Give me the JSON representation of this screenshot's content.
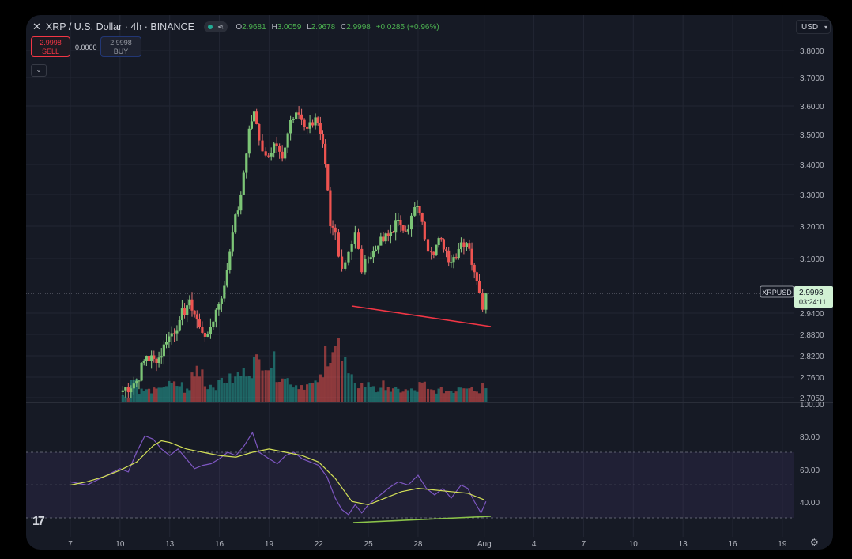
{
  "header": {
    "symbol_title": "XRP / U.S. Dollar · 4h · BINANCE",
    "open_label": "O",
    "open": "2.9681",
    "high_label": "H",
    "high": "3.0059",
    "low_label": "L",
    "low": "2.9678",
    "close_label": "C",
    "close": "2.9998",
    "change": "+0.0285 (+0.96%)"
  },
  "trade": {
    "sell_price": "2.9998",
    "sell_label": "SELL",
    "spread": "0.0000",
    "buy_price": "2.9998",
    "buy_label": "BUY"
  },
  "currency": "USD",
  "price_tag": {
    "symbol": "XRPUSD",
    "price": "2.9998",
    "countdown": "03:24:11"
  },
  "colors": {
    "up": "#26a69a",
    "down": "#ef5350",
    "trendline_price": "#f23645",
    "trendline_rsi": "#8bc34a",
    "rsi_line": "#7e57c2",
    "rsi_ma": "#d4e157",
    "background": "#161a25"
  },
  "icons": {
    "close": "close-icon",
    "share": "share-icon",
    "collapse": "chevron-down-icon",
    "logo": "tradingview-logo",
    "settings": "gear-icon"
  },
  "chart_data": [
    {
      "type": "candlestick",
      "interval": "4h",
      "y_axis_ticks": [
        3.8,
        3.7,
        3.6,
        3.5,
        3.4,
        3.3,
        3.2,
        3.1,
        2.94,
        2.88,
        2.82,
        2.76,
        2.705
      ],
      "y_axis_labels": [
        "3.8000",
        "3.7000",
        "3.6000",
        "3.5000",
        "3.4000",
        "3.3000",
        "3.2000",
        "3.1000",
        "2.9400",
        "2.8800",
        "2.8200",
        "2.7600",
        "2.7050"
      ],
      "x_axis_labels": [
        "7",
        "10",
        "13",
        "16",
        "19",
        "22",
        "25",
        "28",
        "Aug",
        "4",
        "7",
        "10",
        "13",
        "16",
        "19"
      ],
      "x_axis_days": [
        7,
        10,
        13,
        16,
        19,
        22,
        25,
        28,
        32,
        35,
        38,
        41,
        44,
        47,
        50
      ],
      "ohlc_anchors_day_close": [
        [
          10.0,
          2.72
        ],
        [
          11.0,
          2.75
        ],
        [
          11.6,
          2.82
        ],
        [
          12.2,
          2.8
        ],
        [
          12.8,
          2.86
        ],
        [
          13.6,
          2.92
        ],
        [
          14.2,
          2.98
        ],
        [
          14.8,
          2.9
        ],
        [
          15.3,
          2.88
        ],
        [
          15.8,
          2.95
        ],
        [
          16.3,
          3.02
        ],
        [
          16.8,
          3.18
        ],
        [
          17.3,
          3.3
        ],
        [
          17.8,
          3.52
        ],
        [
          18.1,
          3.58
        ],
        [
          18.4,
          3.48
        ],
        [
          18.8,
          3.43
        ],
        [
          19.3,
          3.47
        ],
        [
          19.8,
          3.42
        ],
        [
          20.3,
          3.55
        ],
        [
          20.8,
          3.57
        ],
        [
          21.3,
          3.52
        ],
        [
          21.8,
          3.56
        ],
        [
          22.1,
          3.5
        ],
        [
          22.4,
          3.4
        ],
        [
          22.7,
          3.2
        ],
        [
          23.0,
          3.18
        ],
        [
          23.4,
          3.07
        ],
        [
          23.8,
          3.12
        ],
        [
          24.2,
          3.18
        ],
        [
          24.6,
          3.06
        ],
        [
          25.0,
          3.1
        ],
        [
          25.6,
          3.14
        ],
        [
          26.2,
          3.17
        ],
        [
          26.8,
          3.22
        ],
        [
          27.4,
          3.19
        ],
        [
          27.8,
          3.26
        ],
        [
          28.1,
          3.24
        ],
        [
          28.4,
          3.16
        ],
        [
          28.8,
          3.12
        ],
        [
          29.4,
          3.16
        ],
        [
          30.0,
          3.09
        ],
        [
          30.6,
          3.15
        ],
        [
          31.1,
          3.13
        ],
        [
          31.4,
          3.06
        ],
        [
          31.7,
          3.0
        ],
        [
          31.9,
          2.95
        ],
        [
          32.1,
          2.9998
        ]
      ],
      "volume_relative": [
        0.1,
        0.4,
        0.2,
        0.2,
        0.2,
        0.3,
        0.3,
        0.3,
        0.2,
        0.5,
        0.6,
        0.3,
        0.3,
        0.4,
        0.4,
        0.5,
        0.6,
        0.7,
        0.8,
        0.7,
        0.5,
        0.4,
        0.3,
        0.3,
        0.3,
        0.4,
        0.9,
        1.0,
        0.7,
        0.4,
        0.3,
        0.3,
        0.2,
        0.3,
        0.2,
        0.2,
        0.2,
        0.2,
        0.3,
        0.2,
        0.2,
        0.2,
        0.2,
        0.3,
        0.3,
        0.2,
        0.3
      ]
    },
    {
      "type": "line",
      "name": "RSI",
      "y_axis_labels": [
        "100.00",
        "80.00",
        "60.00",
        "40.00"
      ],
      "y_axis_ticks": [
        100,
        80,
        60,
        40
      ],
      "band": [
        30,
        70
      ],
      "rsi": [
        [
          7,
          52
        ],
        [
          8,
          50
        ],
        [
          9,
          55
        ],
        [
          10,
          60
        ],
        [
          10.5,
          58
        ],
        [
          11,
          70
        ],
        [
          11.5,
          80
        ],
        [
          12,
          78
        ],
        [
          12.5,
          72
        ],
        [
          13,
          68
        ],
        [
          13.5,
          72
        ],
        [
          14,
          66
        ],
        [
          14.5,
          60
        ],
        [
          15,
          62
        ],
        [
          15.5,
          63
        ],
        [
          16,
          66
        ],
        [
          16.5,
          70
        ],
        [
          17,
          68
        ],
        [
          17.5,
          74
        ],
        [
          18,
          82
        ],
        [
          18.4,
          70
        ],
        [
          19,
          66
        ],
        [
          19.5,
          63
        ],
        [
          20,
          68
        ],
        [
          20.5,
          70
        ],
        [
          21,
          66
        ],
        [
          21.5,
          64
        ],
        [
          22,
          62
        ],
        [
          22.5,
          55
        ],
        [
          23,
          42
        ],
        [
          23.4,
          35
        ],
        [
          23.8,
          32
        ],
        [
          24.2,
          38
        ],
        [
          24.6,
          33
        ],
        [
          25,
          38
        ],
        [
          25.6,
          43
        ],
        [
          26.2,
          48
        ],
        [
          26.8,
          52
        ],
        [
          27.4,
          50
        ],
        [
          28,
          56
        ],
        [
          28.5,
          48
        ],
        [
          29,
          44
        ],
        [
          29.5,
          48
        ],
        [
          30,
          42
        ],
        [
          30.6,
          50
        ],
        [
          31,
          48
        ],
        [
          31.4,
          40
        ],
        [
          31.8,
          33
        ],
        [
          32.1,
          40
        ]
      ],
      "rsi_ma": [
        [
          7,
          50
        ],
        [
          8,
          52
        ],
        [
          9,
          55
        ],
        [
          10,
          59
        ],
        [
          11,
          64
        ],
        [
          12,
          74
        ],
        [
          12.5,
          77
        ],
        [
          13,
          76
        ],
        [
          14,
          72
        ],
        [
          15,
          70
        ],
        [
          16,
          68
        ],
        [
          17,
          67
        ],
        [
          18,
          70
        ],
        [
          19,
          72
        ],
        [
          20,
          70
        ],
        [
          21,
          68
        ],
        [
          22,
          64
        ],
        [
          23,
          54
        ],
        [
          24,
          40
        ],
        [
          25,
          38
        ],
        [
          26,
          42
        ],
        [
          27,
          46
        ],
        [
          28,
          48
        ],
        [
          29,
          47
        ],
        [
          30,
          46
        ],
        [
          31,
          45
        ],
        [
          32,
          41
        ]
      ]
    }
  ]
}
